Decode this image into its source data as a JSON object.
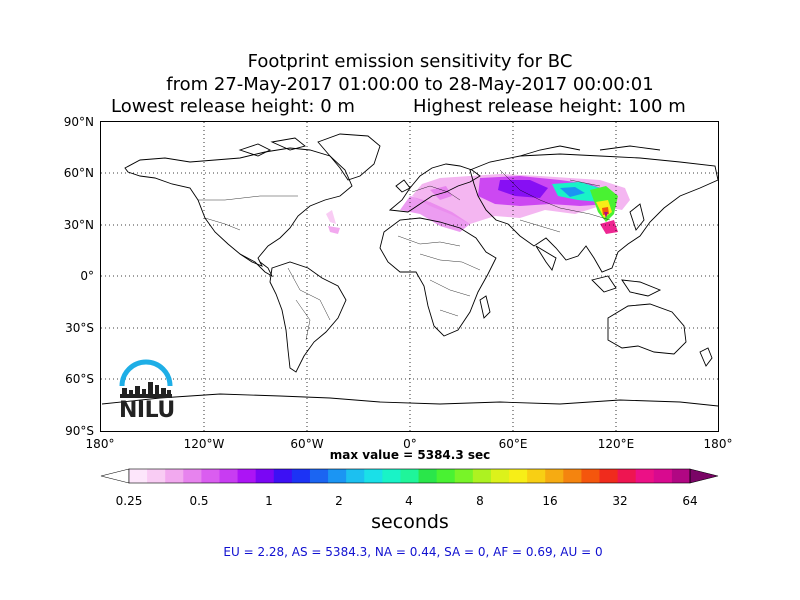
{
  "title": {
    "line1": "Footprint emission sensitivity for BC",
    "line2": "from 27-May-2017 01:00:00 to 28-May-2017 00:00:01",
    "lowest": "Lowest release height: 0 m",
    "highest": "Highest release height: 100 m"
  },
  "map": {
    "lat_labels": [
      "90°N",
      "60°N",
      "30°N",
      "0°",
      "30°S",
      "60°S",
      "90°S"
    ],
    "lon_labels": [
      "180°",
      "120°W",
      "60°W",
      "0°",
      "60°E",
      "120°E",
      "180°"
    ],
    "max_value": "max value = 5384.3 sec",
    "logo_text": "NILU"
  },
  "colorbar": {
    "tick_labels": [
      "0.25",
      "0.5",
      "1",
      "2",
      "4",
      "8",
      "16",
      "32",
      "64"
    ],
    "unit": "seconds",
    "colors": [
      "#ffffff",
      "#fde6fb",
      "#f9ccf4",
      "#f2a9ef",
      "#e783ee",
      "#da5df0",
      "#c83cf2",
      "#ac14f5",
      "#7a06f4",
      "#3d10f4",
      "#1c33f5",
      "#1b65f2",
      "#1b95f3",
      "#1cc0f0",
      "#1ae0e8",
      "#19f3c7",
      "#1ff59a",
      "#2ae64a",
      "#49f232",
      "#78f428",
      "#adf221",
      "#dcf21b",
      "#f7ee17",
      "#f8cf14",
      "#f6ab12",
      "#f4840f",
      "#f4560d",
      "#f02b1d",
      "#ee1551",
      "#ec1086",
      "#d80a8f",
      "#b10783",
      "#7a0566"
    ]
  },
  "stats": "EU = 2.28,  AS = 5384.3,  NA = 0.44,  SA = 0,  AF = 0.69,  AU = 0"
}
